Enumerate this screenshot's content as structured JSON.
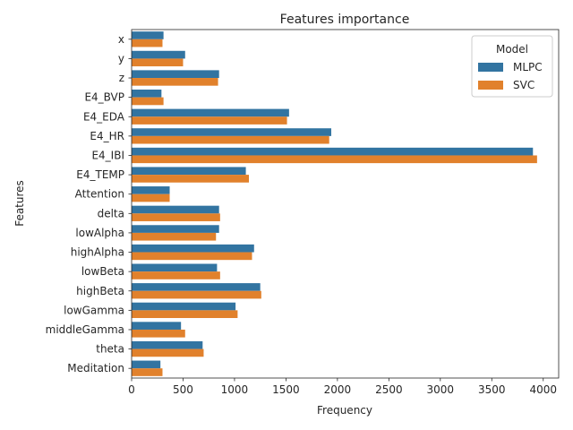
{
  "chart_data": {
    "type": "bar",
    "orientation": "horizontal",
    "title": "Features importance",
    "xlabel": "Frequency",
    "ylabel": "Features",
    "xlim": [
      0,
      4150
    ],
    "xticks": [
      0,
      500,
      1000,
      1500,
      2000,
      2500,
      3000,
      3500,
      4000
    ],
    "grid": false,
    "legend": {
      "title": "Model",
      "placement": "top-right"
    },
    "categories": [
      "x",
      "y",
      "z",
      "E4_BVP",
      "E4_EDA",
      "E4_HR",
      "E4_IBI",
      "E4_TEMP",
      "Attention",
      "delta",
      "lowAlpha",
      "highAlpha",
      "lowBeta",
      "highBeta",
      "lowGamma",
      "middleGamma",
      "theta",
      "Meditation"
    ],
    "series": [
      {
        "name": "MLPC",
        "color": "#3274a1",
        "values": [
          310,
          520,
          850,
          290,
          1530,
          1940,
          3900,
          1110,
          370,
          850,
          850,
          1190,
          830,
          1250,
          1010,
          480,
          690,
          280
        ]
      },
      {
        "name": "SVC",
        "color": "#e1812c",
        "values": [
          300,
          500,
          840,
          310,
          1510,
          1920,
          3940,
          1140,
          370,
          860,
          820,
          1170,
          860,
          1260,
          1030,
          520,
          700,
          300
        ]
      }
    ]
  }
}
